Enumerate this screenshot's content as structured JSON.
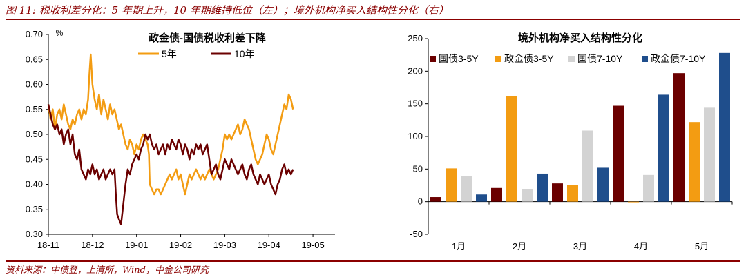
{
  "caption": "图 11: 税收利差分化：5 年期上升，10 年期维持低位（左）；境外机构净买入结构性分化（右）",
  "source": "资料来源：中债登，上清所，Wind，中金公司研究",
  "chart_data": [
    {
      "type": "line",
      "title": "政金债-国债税收利差下降",
      "ylabel": "%",
      "ylim": [
        0.3,
        0.7
      ],
      "yticks": [
        0.3,
        0.35,
        0.4,
        0.45,
        0.5,
        0.55,
        0.6,
        0.65,
        0.7
      ],
      "xticks": [
        "18-11",
        "18-12",
        "19-01",
        "19-02",
        "19-03",
        "19-04",
        "19-05"
      ],
      "legend_position": "top-center",
      "series": [
        {
          "name": "5年",
          "color": "#F39C12",
          "points": [
            [
              0.0,
              0.56
            ],
            [
              0.05,
              0.53
            ],
            [
              0.1,
              0.55
            ],
            [
              0.15,
              0.51
            ],
            [
              0.2,
              0.54
            ],
            [
              0.25,
              0.55
            ],
            [
              0.3,
              0.53
            ],
            [
              0.35,
              0.56
            ],
            [
              0.4,
              0.54
            ],
            [
              0.45,
              0.52
            ],
            [
              0.5,
              0.51
            ],
            [
              0.55,
              0.53
            ],
            [
              0.6,
              0.52
            ],
            [
              0.65,
              0.54
            ],
            [
              0.7,
              0.55
            ],
            [
              0.75,
              0.53
            ],
            [
              0.8,
              0.55
            ],
            [
              0.85,
              0.54
            ],
            [
              0.9,
              0.57
            ],
            [
              0.93,
              0.62
            ],
            [
              0.96,
              0.66
            ],
            [
              1.0,
              0.6
            ],
            [
              1.05,
              0.57
            ],
            [
              1.1,
              0.55
            ],
            [
              1.15,
              0.58
            ],
            [
              1.2,
              0.54
            ],
            [
              1.25,
              0.57
            ],
            [
              1.3,
              0.55
            ],
            [
              1.35,
              0.53
            ],
            [
              1.4,
              0.56
            ],
            [
              1.45,
              0.54
            ],
            [
              1.5,
              0.55
            ],
            [
              1.55,
              0.53
            ],
            [
              1.6,
              0.51
            ],
            [
              1.65,
              0.52
            ],
            [
              1.7,
              0.5
            ],
            [
              1.75,
              0.48
            ],
            [
              1.8,
              0.47
            ],
            [
              1.85,
              0.49
            ],
            [
              1.9,
              0.48
            ],
            [
              1.95,
              0.46
            ],
            [
              2.0,
              0.48
            ],
            [
              2.05,
              0.47
            ],
            [
              2.1,
              0.49
            ],
            [
              2.15,
              0.5
            ],
            [
              2.2,
              0.49
            ],
            [
              2.25,
              0.48
            ],
            [
              2.28,
              0.46
            ],
            [
              2.3,
              0.4
            ],
            [
              2.35,
              0.39
            ],
            [
              2.4,
              0.38
            ],
            [
              2.45,
              0.39
            ],
            [
              2.5,
              0.39
            ],
            [
              2.55,
              0.38
            ],
            [
              2.6,
              0.39
            ],
            [
              2.65,
              0.4
            ],
            [
              2.7,
              0.41
            ],
            [
              2.75,
              0.42
            ],
            [
              2.8,
              0.41
            ],
            [
              2.85,
              0.42
            ],
            [
              2.9,
              0.43
            ],
            [
              2.95,
              0.41
            ],
            [
              3.0,
              0.42
            ],
            [
              3.05,
              0.4
            ],
            [
              3.1,
              0.38
            ],
            [
              3.15,
              0.4
            ],
            [
              3.2,
              0.42
            ],
            [
              3.25,
              0.41
            ],
            [
              3.3,
              0.42
            ],
            [
              3.35,
              0.43
            ],
            [
              3.4,
              0.42
            ],
            [
              3.45,
              0.41
            ],
            [
              3.5,
              0.42
            ],
            [
              3.55,
              0.41
            ],
            [
              3.6,
              0.42
            ],
            [
              3.65,
              0.43
            ],
            [
              3.7,
              0.42
            ],
            [
              3.75,
              0.41
            ],
            [
              3.8,
              0.42
            ],
            [
              3.85,
              0.43
            ],
            [
              3.9,
              0.45
            ],
            [
              3.95,
              0.47
            ],
            [
              4.0,
              0.5
            ],
            [
              4.05,
              0.49
            ],
            [
              4.1,
              0.5
            ],
            [
              4.15,
              0.49
            ],
            [
              4.2,
              0.5
            ],
            [
              4.25,
              0.51
            ],
            [
              4.3,
              0.52
            ],
            [
              4.35,
              0.5
            ],
            [
              4.4,
              0.51
            ],
            [
              4.45,
              0.53
            ],
            [
              4.5,
              0.52
            ],
            [
              4.55,
              0.51
            ],
            [
              4.6,
              0.49
            ],
            [
              4.65,
              0.47
            ],
            [
              4.7,
              0.45
            ],
            [
              4.75,
              0.44
            ],
            [
              4.8,
              0.45
            ],
            [
              4.85,
              0.46
            ],
            [
              4.9,
              0.48
            ],
            [
              4.95,
              0.5
            ],
            [
              5.0,
              0.49
            ],
            [
              5.05,
              0.47
            ],
            [
              5.1,
              0.46
            ],
            [
              5.15,
              0.48
            ],
            [
              5.2,
              0.5
            ],
            [
              5.25,
              0.52
            ],
            [
              5.3,
              0.54
            ],
            [
              5.35,
              0.56
            ],
            [
              5.4,
              0.55
            ],
            [
              5.45,
              0.58
            ],
            [
              5.5,
              0.57
            ],
            [
              5.55,
              0.55
            ]
          ]
        },
        {
          "name": "10年",
          "color": "#6B0000",
          "points": [
            [
              0.0,
              0.56
            ],
            [
              0.05,
              0.54
            ],
            [
              0.1,
              0.52
            ],
            [
              0.15,
              0.51
            ],
            [
              0.2,
              0.52
            ],
            [
              0.25,
              0.5
            ],
            [
              0.3,
              0.51
            ],
            [
              0.35,
              0.48
            ],
            [
              0.4,
              0.5
            ],
            [
              0.45,
              0.51
            ],
            [
              0.5,
              0.48
            ],
            [
              0.55,
              0.5
            ],
            [
              0.6,
              0.46
            ],
            [
              0.65,
              0.45
            ],
            [
              0.7,
              0.47
            ],
            [
              0.75,
              0.43
            ],
            [
              0.8,
              0.42
            ],
            [
              0.85,
              0.41
            ],
            [
              0.9,
              0.43
            ],
            [
              0.95,
              0.42
            ],
            [
              1.0,
              0.44
            ],
            [
              1.05,
              0.42
            ],
            [
              1.1,
              0.43
            ],
            [
              1.15,
              0.41
            ],
            [
              1.2,
              0.42
            ],
            [
              1.25,
              0.43
            ],
            [
              1.3,
              0.41
            ],
            [
              1.35,
              0.42
            ],
            [
              1.4,
              0.43
            ],
            [
              1.45,
              0.42
            ],
            [
              1.5,
              0.43
            ],
            [
              1.53,
              0.38
            ],
            [
              1.56,
              0.34
            ],
            [
              1.6,
              0.33
            ],
            [
              1.65,
              0.32
            ],
            [
              1.7,
              0.36
            ],
            [
              1.75,
              0.4
            ],
            [
              1.8,
              0.43
            ],
            [
              1.85,
              0.42
            ],
            [
              1.9,
              0.44
            ],
            [
              1.95,
              0.45
            ],
            [
              2.0,
              0.46
            ],
            [
              2.05,
              0.45
            ],
            [
              2.1,
              0.47
            ],
            [
              2.15,
              0.48
            ],
            [
              2.2,
              0.5
            ],
            [
              2.25,
              0.49
            ],
            [
              2.3,
              0.5
            ],
            [
              2.35,
              0.48
            ],
            [
              2.4,
              0.47
            ],
            [
              2.45,
              0.48
            ],
            [
              2.5,
              0.46
            ],
            [
              2.55,
              0.47
            ],
            [
              2.6,
              0.48
            ],
            [
              2.65,
              0.46
            ],
            [
              2.7,
              0.48
            ],
            [
              2.75,
              0.47
            ],
            [
              2.8,
              0.49
            ],
            [
              2.85,
              0.48
            ],
            [
              2.9,
              0.47
            ],
            [
              2.95,
              0.49
            ],
            [
              3.0,
              0.48
            ],
            [
              3.05,
              0.46
            ],
            [
              3.1,
              0.48
            ],
            [
              3.15,
              0.47
            ],
            [
              3.2,
              0.45
            ],
            [
              3.25,
              0.47
            ],
            [
              3.3,
              0.46
            ],
            [
              3.35,
              0.48
            ],
            [
              3.4,
              0.47
            ],
            [
              3.45,
              0.48
            ],
            [
              3.5,
              0.46
            ],
            [
              3.55,
              0.47
            ],
            [
              3.6,
              0.48
            ],
            [
              3.65,
              0.45
            ],
            [
              3.7,
              0.42
            ],
            [
              3.75,
              0.43
            ],
            [
              3.8,
              0.44
            ],
            [
              3.85,
              0.42
            ],
            [
              3.9,
              0.41
            ],
            [
              3.95,
              0.43
            ],
            [
              4.0,
              0.45
            ],
            [
              4.05,
              0.44
            ],
            [
              4.1,
              0.43
            ],
            [
              4.15,
              0.45
            ],
            [
              4.2,
              0.44
            ],
            [
              4.25,
              0.43
            ],
            [
              4.3,
              0.42
            ],
            [
              4.35,
              0.43
            ],
            [
              4.4,
              0.44
            ],
            [
              4.45,
              0.42
            ],
            [
              4.5,
              0.41
            ],
            [
              4.55,
              0.43
            ],
            [
              4.6,
              0.44
            ],
            [
              4.65,
              0.42
            ],
            [
              4.7,
              0.41
            ],
            [
              4.75,
              0.4
            ],
            [
              4.8,
              0.42
            ],
            [
              4.85,
              0.41
            ],
            [
              4.9,
              0.4
            ],
            [
              4.95,
              0.41
            ],
            [
              5.0,
              0.42
            ],
            [
              5.05,
              0.4
            ],
            [
              5.1,
              0.39
            ],
            [
              5.15,
              0.38
            ],
            [
              5.2,
              0.4
            ],
            [
              5.25,
              0.41
            ],
            [
              5.3,
              0.43
            ],
            [
              5.35,
              0.44
            ],
            [
              5.4,
              0.42
            ],
            [
              5.45,
              0.43
            ],
            [
              5.5,
              0.42
            ],
            [
              5.55,
              0.43
            ]
          ]
        }
      ]
    },
    {
      "type": "bar",
      "title": "境外机构净买入结构性分化",
      "categories": [
        "1月",
        "2月",
        "3月",
        "4月",
        "5月"
      ],
      "ylim": [
        -50,
        250
      ],
      "yticks": [
        -50,
        0,
        50,
        100,
        150,
        200,
        250
      ],
      "legend_position": "top",
      "series": [
        {
          "name": "国债3-5Y",
          "color": "#6B0000",
          "values": [
            7,
            21,
            28,
            147,
            197
          ]
        },
        {
          "name": "政金债3-5Y",
          "color": "#F39C12",
          "values": [
            51,
            162,
            26,
            -1,
            122
          ]
        },
        {
          "name": "国债7-10Y",
          "color": "#D3D3D3",
          "values": [
            39,
            19,
            109,
            41,
            144
          ]
        },
        {
          "name": "政金债7-10Y",
          "color": "#1F4E8C",
          "values": [
            11,
            43,
            52,
            164,
            228
          ]
        }
      ]
    }
  ]
}
